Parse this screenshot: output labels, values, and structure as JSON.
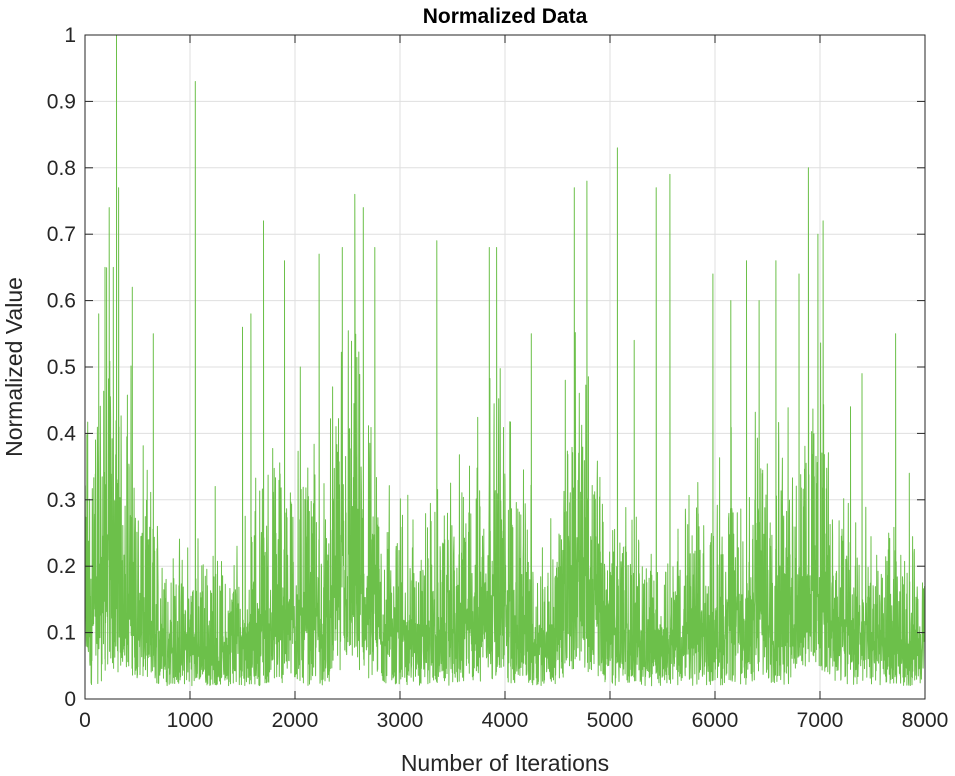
{
  "chart_data": {
    "type": "line",
    "title": "Normalized Data",
    "xlabel": "Number of Iterations",
    "ylabel": "Normalized Value",
    "xlim": [
      0,
      8000
    ],
    "ylim": [
      0,
      1
    ],
    "x_ticks": [
      0,
      1000,
      2000,
      3000,
      4000,
      5000,
      6000,
      7000,
      8000
    ],
    "x_tick_labels": [
      "0",
      "1000",
      "2000",
      "3000",
      "4000",
      "5000",
      "6000",
      "7000",
      "8000"
    ],
    "y_ticks": [
      0,
      0.1,
      0.2,
      0.3,
      0.4,
      0.5,
      0.6,
      0.7,
      0.8,
      0.9,
      1
    ],
    "y_tick_labels": [
      "0",
      "0.1",
      "0.2",
      "0.3",
      "0.4",
      "0.5",
      "0.6",
      "0.7",
      "0.8",
      "0.9",
      "1"
    ],
    "grid": true,
    "legend": "none",
    "series": [
      {
        "color": "#6cc04a",
        "envelope": {
          "x": [
            0,
            100,
            200,
            300,
            400,
            500,
            600,
            700,
            800,
            900,
            1000,
            1100,
            1200,
            1300,
            1400,
            1500,
            1600,
            1700,
            1800,
            1900,
            2000,
            2100,
            2200,
            2300,
            2400,
            2500,
            2600,
            2700,
            2800,
            2900,
            3000,
            3100,
            3200,
            3300,
            3400,
            3500,
            3600,
            3700,
            3800,
            3900,
            4000,
            4100,
            4200,
            4300,
            4400,
            4500,
            4600,
            4700,
            4800,
            4900,
            5000,
            5100,
            5200,
            5300,
            5400,
            5500,
            5600,
            5700,
            5800,
            5900,
            6000,
            6100,
            6200,
            6300,
            6400,
            6500,
            6600,
            6700,
            6800,
            6900,
            7000,
            7100,
            7200,
            7300,
            7400,
            7500,
            7600,
            7700,
            7800,
            7900,
            8000
          ],
          "upper": [
            0.45,
            0.55,
            0.7,
            0.62,
            0.58,
            0.42,
            0.35,
            0.3,
            0.27,
            0.25,
            0.27,
            0.25,
            0.23,
            0.24,
            0.26,
            0.3,
            0.35,
            0.38,
            0.4,
            0.42,
            0.44,
            0.45,
            0.4,
            0.32,
            0.6,
            0.62,
            0.55,
            0.45,
            0.38,
            0.35,
            0.33,
            0.3,
            0.3,
            0.32,
            0.33,
            0.35,
            0.38,
            0.42,
            0.5,
            0.55,
            0.5,
            0.42,
            0.35,
            0.3,
            0.28,
            0.3,
            0.55,
            0.6,
            0.5,
            0.4,
            0.36,
            0.34,
            0.3,
            0.28,
            0.27,
            0.27,
            0.28,
            0.3,
            0.32,
            0.35,
            0.36,
            0.4,
            0.42,
            0.42,
            0.45,
            0.48,
            0.5,
            0.45,
            0.5,
            0.58,
            0.55,
            0.45,
            0.38,
            0.33,
            0.3,
            0.28,
            0.26,
            0.26,
            0.26,
            0.25,
            0.24
          ],
          "lower": [
            0.02,
            0.02,
            0.03,
            0.04,
            0.04,
            0.03,
            0.03,
            0.02,
            0.02,
            0.02,
            0.02,
            0.02,
            0.02,
            0.02,
            0.02,
            0.02,
            0.02,
            0.02,
            0.02,
            0.02,
            0.02,
            0.02,
            0.02,
            0.02,
            0.04,
            0.05,
            0.04,
            0.03,
            0.03,
            0.02,
            0.02,
            0.02,
            0.02,
            0.02,
            0.02,
            0.02,
            0.02,
            0.02,
            0.03,
            0.03,
            0.02,
            0.02,
            0.02,
            0.02,
            0.02,
            0.02,
            0.04,
            0.05,
            0.04,
            0.03,
            0.02,
            0.02,
            0.02,
            0.02,
            0.02,
            0.02,
            0.02,
            0.02,
            0.02,
            0.02,
            0.02,
            0.02,
            0.02,
            0.02,
            0.02,
            0.02,
            0.02,
            0.02,
            0.04,
            0.05,
            0.04,
            0.03,
            0.02,
            0.02,
            0.02,
            0.02,
            0.02,
            0.02,
            0.02,
            0.02,
            0.02
          ]
        },
        "peaks": [
          {
            "x": 100,
            "y": 0.39
          },
          {
            "x": 130,
            "y": 0.58
          },
          {
            "x": 190,
            "y": 0.65
          },
          {
            "x": 230,
            "y": 0.74
          },
          {
            "x": 270,
            "y": 0.65
          },
          {
            "x": 300,
            "y": 1.0
          },
          {
            "x": 320,
            "y": 0.77
          },
          {
            "x": 450,
            "y": 0.62
          },
          {
            "x": 650,
            "y": 0.55
          },
          {
            "x": 1050,
            "y": 0.93
          },
          {
            "x": 1240,
            "y": 0.32
          },
          {
            "x": 1500,
            "y": 0.56
          },
          {
            "x": 1580,
            "y": 0.58
          },
          {
            "x": 1700,
            "y": 0.72
          },
          {
            "x": 1900,
            "y": 0.66
          },
          {
            "x": 2050,
            "y": 0.5
          },
          {
            "x": 2230,
            "y": 0.67
          },
          {
            "x": 2450,
            "y": 0.68
          },
          {
            "x": 2570,
            "y": 0.76
          },
          {
            "x": 2650,
            "y": 0.74
          },
          {
            "x": 2760,
            "y": 0.68
          },
          {
            "x": 3350,
            "y": 0.69
          },
          {
            "x": 3850,
            "y": 0.68
          },
          {
            "x": 3920,
            "y": 0.68
          },
          {
            "x": 4250,
            "y": 0.55
          },
          {
            "x": 4660,
            "y": 0.77
          },
          {
            "x": 4780,
            "y": 0.78
          },
          {
            "x": 5070,
            "y": 0.83
          },
          {
            "x": 5230,
            "y": 0.54
          },
          {
            "x": 5440,
            "y": 0.77
          },
          {
            "x": 5570,
            "y": 0.79
          },
          {
            "x": 5980,
            "y": 0.64
          },
          {
            "x": 6150,
            "y": 0.6
          },
          {
            "x": 6300,
            "y": 0.66
          },
          {
            "x": 6420,
            "y": 0.6
          },
          {
            "x": 6580,
            "y": 0.66
          },
          {
            "x": 6800,
            "y": 0.64
          },
          {
            "x": 6890,
            "y": 0.8
          },
          {
            "x": 6980,
            "y": 0.7
          },
          {
            "x": 7030,
            "y": 0.72
          },
          {
            "x": 7290,
            "y": 0.44
          },
          {
            "x": 7400,
            "y": 0.49
          },
          {
            "x": 7720,
            "y": 0.55
          },
          {
            "x": 7850,
            "y": 0.34
          }
        ]
      }
    ]
  }
}
